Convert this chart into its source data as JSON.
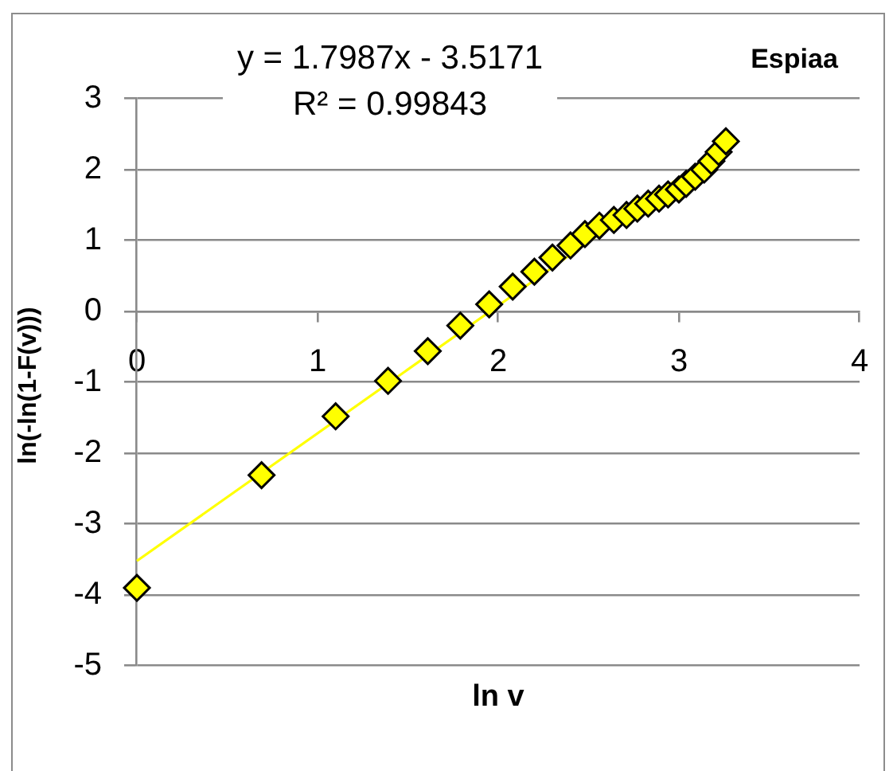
{
  "chart_data": {
    "type": "scatter",
    "title": "Espiaa",
    "xlabel": "ln v",
    "ylabel": "ln(-ln(1-F(v)))",
    "annotations": [
      "y = 1.7987x - 3.5171",
      "R² = 0.99843"
    ],
    "series": [
      {
        "color": "#ffff00",
        "x": [
          0,
          0.69,
          1.1,
          1.39,
          1.61,
          1.79,
          1.95,
          2.08,
          2.2,
          2.3,
          2.4,
          2.48,
          2.56,
          2.64,
          2.71,
          2.77,
          2.83,
          2.89,
          2.94,
          3,
          3.04,
          3.09,
          3.14,
          3.18,
          3.22,
          3.26
        ],
        "values": [
          -3.9,
          -2.31,
          -1.48,
          -0.98,
          -0.56,
          -0.2,
          0.1,
          0.35,
          0.56,
          0.76,
          0.93,
          1.09,
          1.21,
          1.29,
          1.36,
          1.45,
          1.52,
          1.59,
          1.65,
          1.72,
          1.8,
          1.9,
          2.0,
          2.12,
          2.25,
          2.4
        ]
      },
      {
        "type": "line",
        "color": "#ffff00",
        "marker": "none",
        "x": [
          0,
          3.26
        ],
        "values": [
          -3.52,
          2.35
        ]
      }
    ],
    "xlim": [
      0,
      4
    ],
    "xticks": [
      0,
      1,
      2,
      3,
      4
    ],
    "ylim": [
      -5,
      3
    ],
    "yticks": [
      -5,
      -4,
      -3,
      -2,
      -1,
      0,
      1,
      2,
      3
    ],
    "grid": "y",
    "marker": "diamond",
    "legend": false
  }
}
